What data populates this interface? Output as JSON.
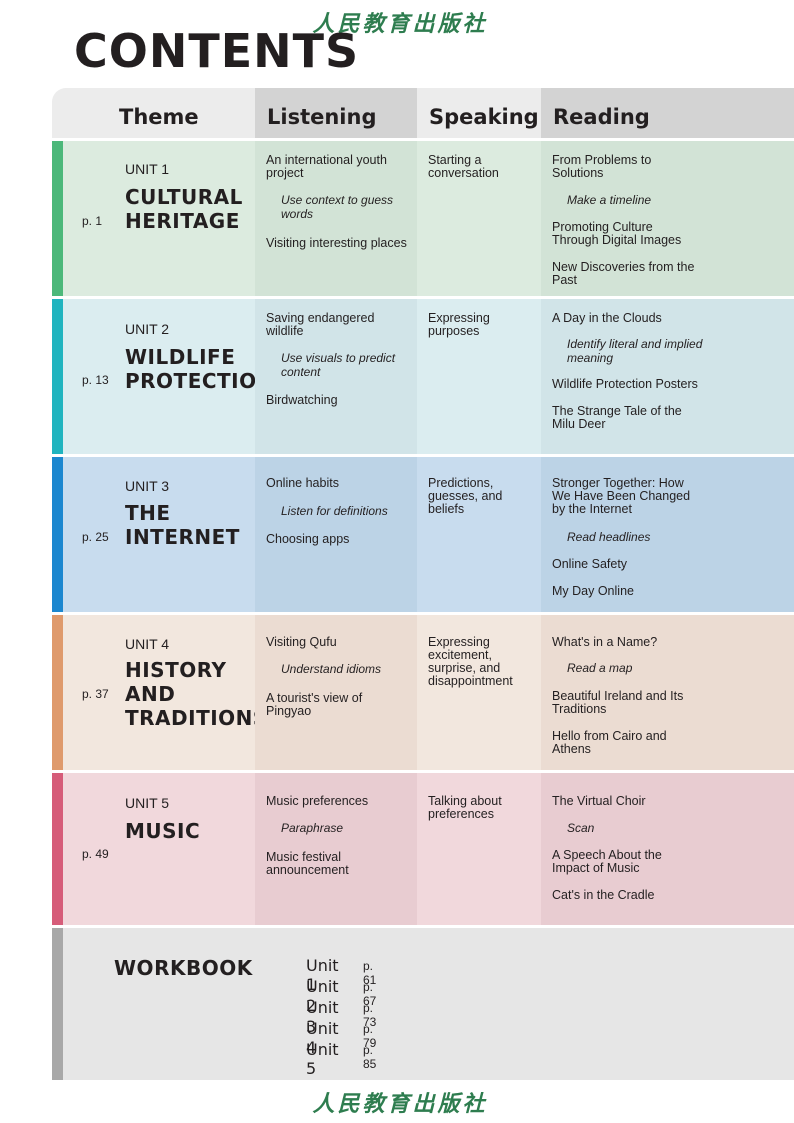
{
  "publisher": "人民教育出版社",
  "title": "CONTENTS",
  "headers": {
    "theme": "Theme",
    "listening": "Listening",
    "speaking": "Speaking",
    "reading": "Reading"
  },
  "colors": {
    "unit1": {
      "bar": "#4cb87a",
      "a": "#dcebdf",
      "b": "#d2e3d6"
    },
    "unit2": {
      "bar": "#20b4bf",
      "a": "#dbedf0",
      "b": "#d1e4e8"
    },
    "unit3": {
      "bar": "#1c87cf",
      "a": "#c8dcee",
      "b": "#bcd3e6"
    },
    "unit4": {
      "bar": "#df9a6c",
      "a": "#f2e7de",
      "b": "#ebdcd2"
    },
    "unit5": {
      "bar": "#d65c79",
      "a": "#f1d8dc",
      "b": "#e8ccd1"
    },
    "workbook": {
      "bar": "#a8a8a8",
      "a": "#e6e6e6"
    }
  },
  "units": [
    {
      "page": "p. 1",
      "label": "UNIT 1",
      "name": [
        "CULTURAL",
        "HERITAGE"
      ],
      "listening": [
        "An international youth project",
        "Use context to guess words",
        "Visiting interesting places"
      ],
      "speaking": [
        "Starting a conversation"
      ],
      "reading": [
        "From Problems to Solutions",
        "Make a timeline",
        "Promoting Culture Through Digital Images",
        "New Discoveries from the Past"
      ]
    },
    {
      "page": "p. 13",
      "label": "UNIT 2",
      "name": [
        "WILDLIFE",
        "PROTECTION"
      ],
      "listening": [
        "Saving endangered wildlife",
        "Use visuals to predict content",
        "Birdwatching"
      ],
      "speaking": [
        "Expressing purposes"
      ],
      "reading": [
        "A Day in the Clouds",
        "Identify literal and implied meaning",
        "Wildlife Protection Posters",
        "The Strange Tale of the Milu Deer"
      ]
    },
    {
      "page": "p. 25",
      "label": "UNIT 3",
      "name": [
        "THE",
        "INTERNET"
      ],
      "listening": [
        "Online habits",
        "Listen for definitions",
        "Choosing apps"
      ],
      "speaking": [
        "Predictions, guesses, and beliefs"
      ],
      "reading": [
        "Stronger Together: How We Have Been Changed by the Internet",
        "Read headlines",
        "Online Safety",
        "My Day Online"
      ]
    },
    {
      "page": "p. 37",
      "label": "UNIT 4",
      "name": [
        "HISTORY",
        "AND",
        "TRADITIONS"
      ],
      "listening": [
        "Visiting Qufu",
        "Understand idioms",
        "A tourist's view of Pingyao"
      ],
      "speaking": [
        "Expressing excitement, surprise, and disappointment"
      ],
      "reading": [
        "What's in a Name?",
        "Read a map",
        "Beautiful Ireland and Its Traditions",
        "Hello from Cairo and Athens"
      ]
    },
    {
      "page": "p. 49",
      "label": "UNIT 5",
      "name": [
        "MUSIC"
      ],
      "listening": [
        "Music preferences",
        "Paraphrase",
        "Music festival announcement"
      ],
      "speaking": [
        "Talking about preferences"
      ],
      "reading": [
        "The Virtual Choir",
        "Scan",
        "A Speech About the Impact of Music",
        "Cat's in the Cradle"
      ]
    }
  ],
  "workbook": {
    "title": "WORKBOOK",
    "items": [
      {
        "unit": "Unit 1",
        "page": "p. 61"
      },
      {
        "unit": "Unit 2",
        "page": "p. 67"
      },
      {
        "unit": "Unit 3",
        "page": "p. 73"
      },
      {
        "unit": "Unit 4",
        "page": "p. 79"
      },
      {
        "unit": "Unit 5",
        "page": "p. 85"
      }
    ]
  }
}
